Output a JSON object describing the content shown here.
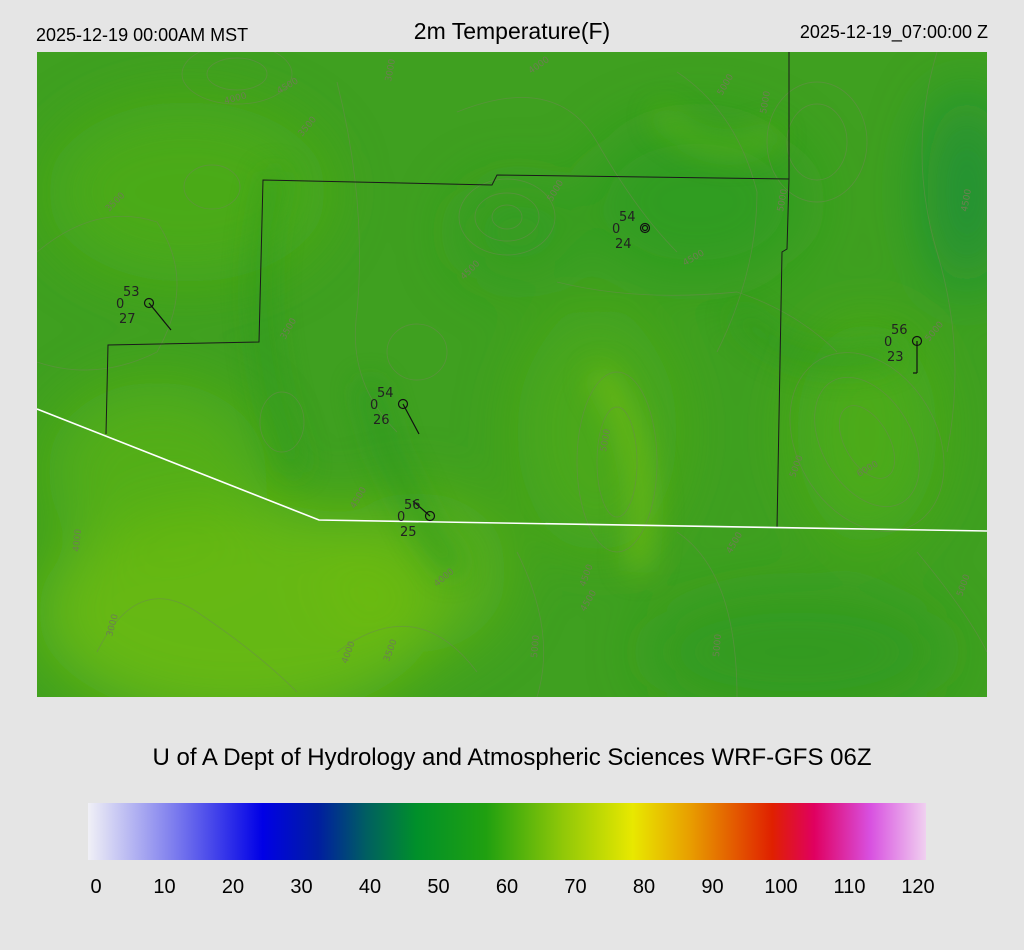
{
  "header": {
    "local_time": "2025-12-19 00:00AM MST",
    "title": "2m Temperature(F)",
    "utc_time": "2025-12-19_07:00:00 Z"
  },
  "credit": "U of A Dept of Hydrology and Atmospheric Sciences WRF-GFS 06Z",
  "colorbar": {
    "min": 0,
    "max": 120,
    "tick_labels": [
      "0",
      "10",
      "20",
      "30",
      "40",
      "50",
      "60",
      "70",
      "80",
      "90",
      "100",
      "110",
      "120"
    ],
    "stops": [
      {
        "value": 0,
        "color": "#f0f0f6"
      },
      {
        "value": 12,
        "color": "#8080ee"
      },
      {
        "value": 25,
        "color": "#0000e6"
      },
      {
        "value": 33,
        "color": "#001ea0"
      },
      {
        "value": 40,
        "color": "#006060"
      },
      {
        "value": 47,
        "color": "#00902a"
      },
      {
        "value": 57,
        "color": "#20a010"
      },
      {
        "value": 68,
        "color": "#90c808"
      },
      {
        "value": 78,
        "color": "#e8e800"
      },
      {
        "value": 86,
        "color": "#e8a000"
      },
      {
        "value": 98,
        "color": "#e02000"
      },
      {
        "value": 104,
        "color": "#e00060"
      },
      {
        "value": 112,
        "color": "#d850e0"
      },
      {
        "value": 120,
        "color": "#f0d0f0"
      }
    ]
  },
  "contour_labels": [
    "4000",
    "4500",
    "3000",
    "3500",
    "4000",
    "5000",
    "5000",
    "3500",
    "3500",
    "5000",
    "4500",
    "4500",
    "5000",
    "4500",
    "5000",
    "5000",
    "6000",
    "5000",
    "4500",
    "4500",
    "4000",
    "3000",
    "4000",
    "4000",
    "3500",
    "4500",
    "5000",
    "5000",
    "5000",
    "4500"
  ],
  "stations": [
    {
      "temp": "53",
      "dew": "27",
      "wind": "0"
    },
    {
      "temp": "54",
      "dew": "24",
      "wind": "0"
    },
    {
      "temp": "56",
      "dew": "23",
      "wind": "0"
    },
    {
      "temp": "54",
      "dew": "26",
      "wind": "0"
    },
    {
      "temp": "56",
      "dew": "25",
      "wind": "0"
    }
  ],
  "colors": {
    "map_base": "#3fa020",
    "boundary": "#ffffff",
    "county_line": "#1a1a1a",
    "contour": "#6c8a50"
  }
}
